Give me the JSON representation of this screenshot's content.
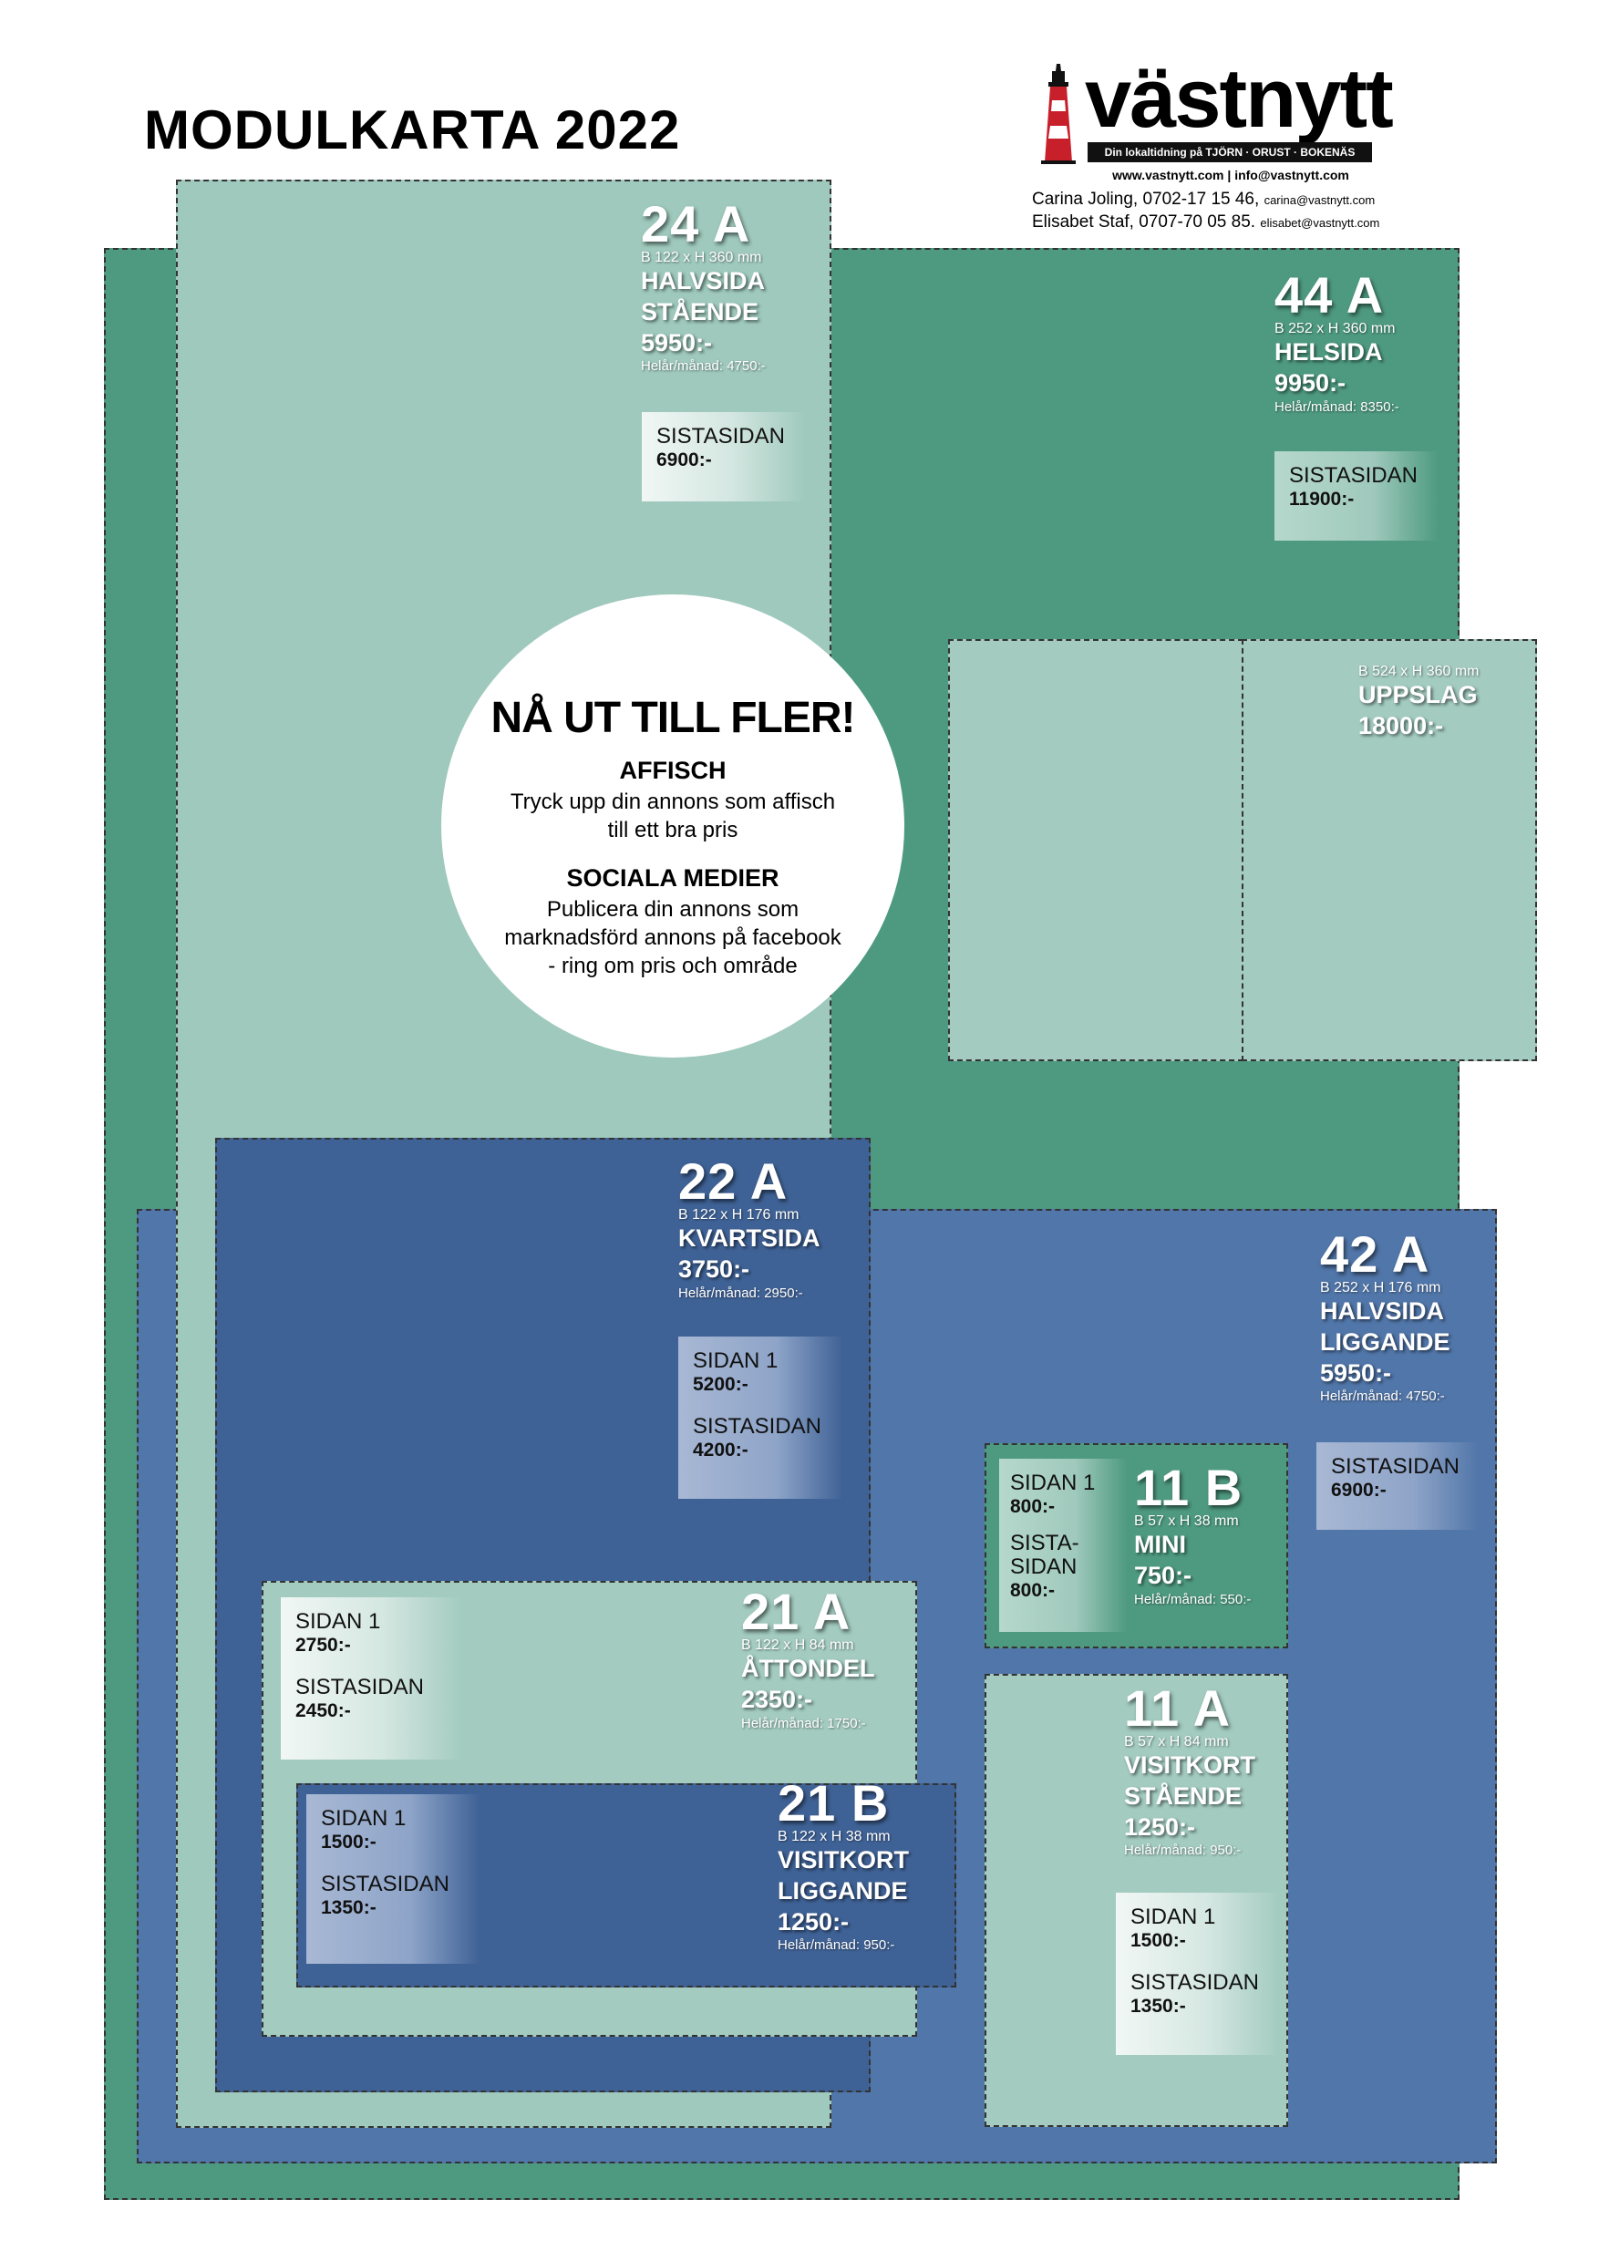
{
  "title": "MODULKARTA 2022",
  "logo": {
    "name": "västnytt",
    "tagline": "Din lokaltidning på TJÖRN · ORUST · BOKENÄS",
    "web": "www.vastnytt.com  |  info@vastnytt.com"
  },
  "contacts": [
    {
      "text": "Carina Joling, 0702-17 15 46,",
      "email": "carina@vastnytt.com"
    },
    {
      "text": "Elisabet Staf, 0707-70 05 85.",
      "email": "elisabet@vastnytt.com"
    }
  ],
  "modules": {
    "m24a": {
      "code": "24 A",
      "dim": "B 122 x H 360 mm",
      "name1": "HALVSIDA",
      "name2": "STÅENDE",
      "price": "5950:-",
      "note": "Helår/månad: 4750:-",
      "p1_label": "SISTASIDAN",
      "p1_price": "6900:-"
    },
    "m44a": {
      "code": "44 A",
      "dim": "B 252 x H 360 mm",
      "name1": "HELSIDA",
      "price": "9950:-",
      "note": "Helår/månad: 8350:-",
      "p1_label": "SISTASIDAN",
      "p1_price": "11900:-"
    },
    "uppslag": {
      "dim": "B 524 x H 360 mm",
      "name1": "UPPSLAG",
      "price": "18000:-"
    },
    "m22a": {
      "code": "22 A",
      "dim": "B 122 x H 176 mm",
      "name1": "KVARTSIDA",
      "price": "3750:-",
      "note": "Helår/månad: 2950:-",
      "p1_label": "SIDAN 1",
      "p1_price": "5200:-",
      "p2_label": "SISTASIDAN",
      "p2_price": "4200:-"
    },
    "m42a": {
      "code": "42 A",
      "dim": "B 252 x H 176 mm",
      "name1": "HALVSIDA",
      "name2": "LIGGANDE",
      "price": "5950:-",
      "note": "Helår/månad: 4750:-",
      "p1_label": "SISTASIDAN",
      "p1_price": "6900:-"
    },
    "m11b": {
      "code": "11 B",
      "dim": "B 57 x H 38 mm",
      "name1": "MINI",
      "price": "750:-",
      "note": "Helår/månad: 550:-",
      "p1_label": "SIDAN 1",
      "p1_price": "800:-",
      "p2_label_a": "SISTA-",
      "p2_label_b": "SIDAN",
      "p2_price": "800:-"
    },
    "m21a": {
      "code": "21 A",
      "dim": "B 122 x H 84 mm",
      "name1": "ÅTTONDEL",
      "price": "2350:-",
      "note": "Helår/månad: 1750:-",
      "p1_label": "SIDAN 1",
      "p1_price": "2750:-",
      "p2_label": "SISTASIDAN",
      "p2_price": "2450:-"
    },
    "m11a": {
      "code": "11 A",
      "dim": "B 57 x H 84 mm",
      "name1": "VISITKORT",
      "name2": "STÅENDE",
      "price": "1250:-",
      "note": "Helår/månad: 950:-",
      "p1_label": "SIDAN 1",
      "p1_price": "1500:-",
      "p2_label": "SISTASIDAN",
      "p2_price": "1350:-"
    },
    "m21b": {
      "code": "21 B",
      "dim": "B 122 x H 38 mm",
      "name1": "VISITKORT",
      "name2": "LIGGANDE",
      "price": "1250:-",
      "note": "Helår/månad: 950:-",
      "p1_label": "SIDAN 1",
      "p1_price": "1500:-",
      "p2_label": "SISTASIDAN",
      "p2_price": "1350:-"
    }
  },
  "circle": {
    "headline": "NÅ UT TILL FLER!",
    "affisch_title": "AFFISCH",
    "affisch_line1": "Tryck upp din annons som affisch",
    "affisch_line2": "till ett bra pris",
    "social_title": "SOCIALA MEDIER",
    "social_line1": "Publicera din annons som",
    "social_line2": "marknadsförd annons på facebook",
    "social_line3": "- ring om pris och område"
  }
}
